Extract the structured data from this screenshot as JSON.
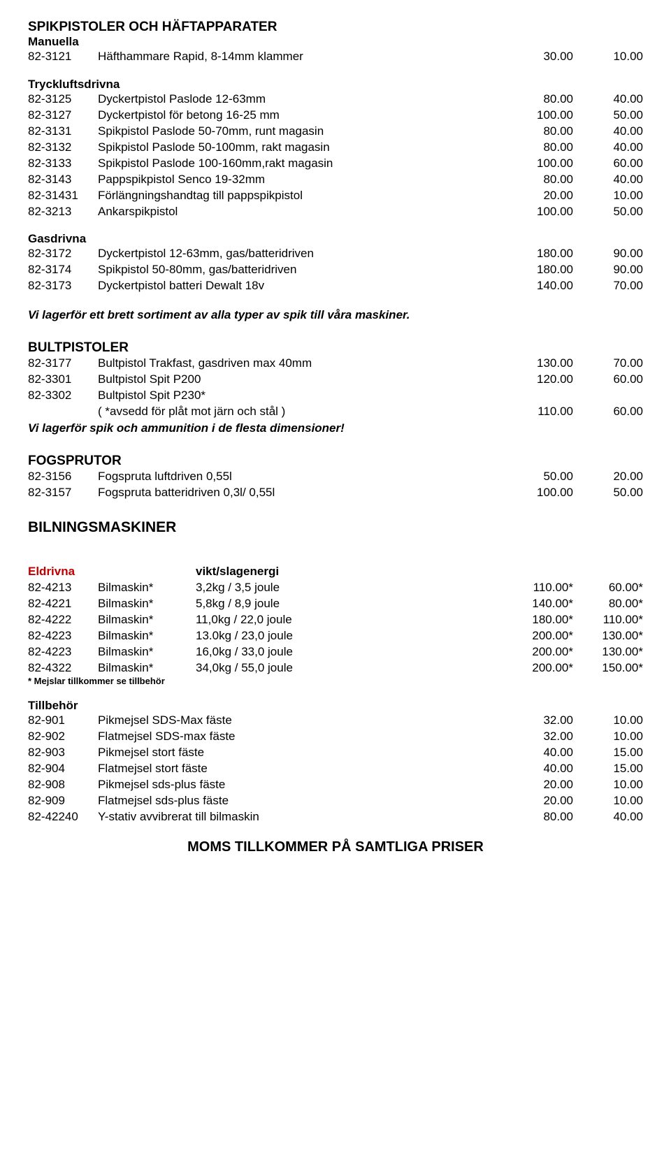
{
  "spik": {
    "title": "SPIKPISTOLER OCH HÄFTAPPARATER",
    "manuella": {
      "label": "Manuella",
      "rows": [
        {
          "code": "82-3121",
          "desc": "Häfthammare Rapid, 8-14mm klammer",
          "p1": "30.00",
          "p2": "10.00"
        }
      ]
    },
    "tryck": {
      "label": "Tryckluftsdrivna",
      "rows": [
        {
          "code": "82-3125",
          "desc": "Dyckertpistol Paslode 12-63mm",
          "p1": "80.00",
          "p2": "40.00"
        },
        {
          "code": "82-3127",
          "desc": "Dyckertpistol för betong 16-25 mm",
          "p1": "100.00",
          "p2": "50.00"
        },
        {
          "code": "82-3131",
          "desc": "Spikpistol Paslode 50-70mm, runt magasin",
          "p1": "80.00",
          "p2": "40.00"
        },
        {
          "code": "82-3132",
          "desc": "Spikpistol Paslode 50-100mm, rakt magasin",
          "p1": "80.00",
          "p2": "40.00"
        },
        {
          "code": "82-3133",
          "desc": "Spikpistol Paslode 100-160mm,rakt magasin",
          "p1": "100.00",
          "p2": "60.00"
        },
        {
          "code": "82-3143",
          "desc": "Pappspikpistol Senco 19-32mm",
          "p1": "80.00",
          "p2": "40.00"
        },
        {
          "code": "82-31431",
          "desc": "Förlängningshandtag till pappspikpistol",
          "p1": "20.00",
          "p2": "10.00"
        },
        {
          "code": "82-3213",
          "desc": "Ankarspikpistol",
          "p1": "100.00",
          "p2": "50.00"
        }
      ]
    },
    "gas": {
      "label": "Gasdrivna",
      "rows": [
        {
          "code": "82-3172",
          "desc": "Dyckertpistol 12-63mm, gas/batteridriven",
          "p1": "180.00",
          "p2": "90.00"
        },
        {
          "code": "82-3174",
          "desc": "Spikpistol 50-80mm, gas/batteridriven",
          "p1": "180.00",
          "p2": "90.00"
        },
        {
          "code": "82-3173",
          "desc": "Dyckertpistol batteri Dewalt 18v",
          "p1": "140.00",
          "p2": "70.00"
        }
      ]
    },
    "note": "Vi lagerför ett brett sortiment av alla typer av spik till våra maskiner."
  },
  "bult": {
    "title": "BULTPISTOLER",
    "rows": [
      {
        "code": "82-3177",
        "desc": "Bultpistol Trakfast, gasdriven max 40mm",
        "p1": "130.00",
        "p2": "70.00"
      },
      {
        "code": "82-3301",
        "desc": "Bultpistol Spit P200",
        "p1": "120.00",
        "p2": "60.00"
      },
      {
        "code": "82-3302",
        "desc": "Bultpistol Spit P230*",
        "p1": "",
        "p2": ""
      }
    ],
    "sub_note": "( *avsedd för plåt mot järn och stål )",
    "sub_p1": "110.00",
    "sub_p2": "60.00",
    "note": "Vi lagerför spik och ammunition i de flesta dimensioner!"
  },
  "fog": {
    "title": "FOGSPRUTOR",
    "rows": [
      {
        "code": "82-3156",
        "desc": "Fogspruta luftdriven 0,55l",
        "p1": "50.00",
        "p2": "20.00"
      },
      {
        "code": "82-3157",
        "desc": "Fogspruta batteridriven 0,3l/ 0,55l",
        "p1": "100.00",
        "p2": "50.00"
      }
    ]
  },
  "bilning": {
    "title": "BILNINGSMASKINER",
    "eldrivna": {
      "label": "Eldrivna",
      "spec_label": "vikt/slagenergi",
      "rows": [
        {
          "code": "82-4213",
          "desc": "Bilmaskin*",
          "spec": "3,2kg / 3,5 joule",
          "p1": "110.00*",
          "p2": "60.00*"
        },
        {
          "code": "82-4221",
          "desc": "Bilmaskin*",
          "spec": "5,8kg / 8,9 joule",
          "p1": "140.00*",
          "p2": "80.00*"
        },
        {
          "code": "82-4222",
          "desc": "Bilmaskin*",
          "spec": "11,0kg / 22,0 joule",
          "p1": "180.00*",
          "p2": "110.00*"
        },
        {
          "code": "82-4223",
          "desc": "Bilmaskin*",
          "spec": "13.0kg / 23,0 joule",
          "p1": "200.00*",
          "p2": "130.00*"
        },
        {
          "code": "82-4223",
          "desc": "Bilmaskin*",
          "spec": "16,0kg / 33,0 joule",
          "p1": "200.00*",
          "p2": "130.00*"
        },
        {
          "code": "82-4322",
          "desc": "Bilmaskin*",
          "spec": "34,0kg / 55,0 joule",
          "p1": "200.00*",
          "p2": "150.00*"
        }
      ],
      "note": "* Mejslar tillkommer se tillbehör"
    },
    "tillbehor": {
      "label": "Tillbehör",
      "rows": [
        {
          "code": "82-901",
          "desc": "Pikmejsel SDS-Max fäste",
          "p1": "32.00",
          "p2": "10.00"
        },
        {
          "code": "82-902",
          "desc": "Flatmejsel SDS-max fäste",
          "p1": "32.00",
          "p2": "10.00"
        },
        {
          "code": "82-903",
          "desc": "Pikmejsel stort fäste",
          "p1": "40.00",
          "p2": "15.00"
        },
        {
          "code": "82-904",
          "desc": "Flatmejsel stort fäste",
          "p1": "40.00",
          "p2": "15.00"
        },
        {
          "code": "82-908",
          "desc": "Pikmejsel sds-plus fäste",
          "p1": "20.00",
          "p2": "10.00"
        },
        {
          "code": "82-909",
          "desc": "Flatmejsel sds-plus fäste",
          "p1": "20.00",
          "p2": "10.00"
        },
        {
          "code": "82-42240",
          "desc": "Y-stativ avvibrerat till bilmaskin",
          "p1": "80.00",
          "p2": "40.00"
        }
      ]
    }
  },
  "footer": "MOMS TILLKOMMER PÅ SAMTLIGA PRISER"
}
